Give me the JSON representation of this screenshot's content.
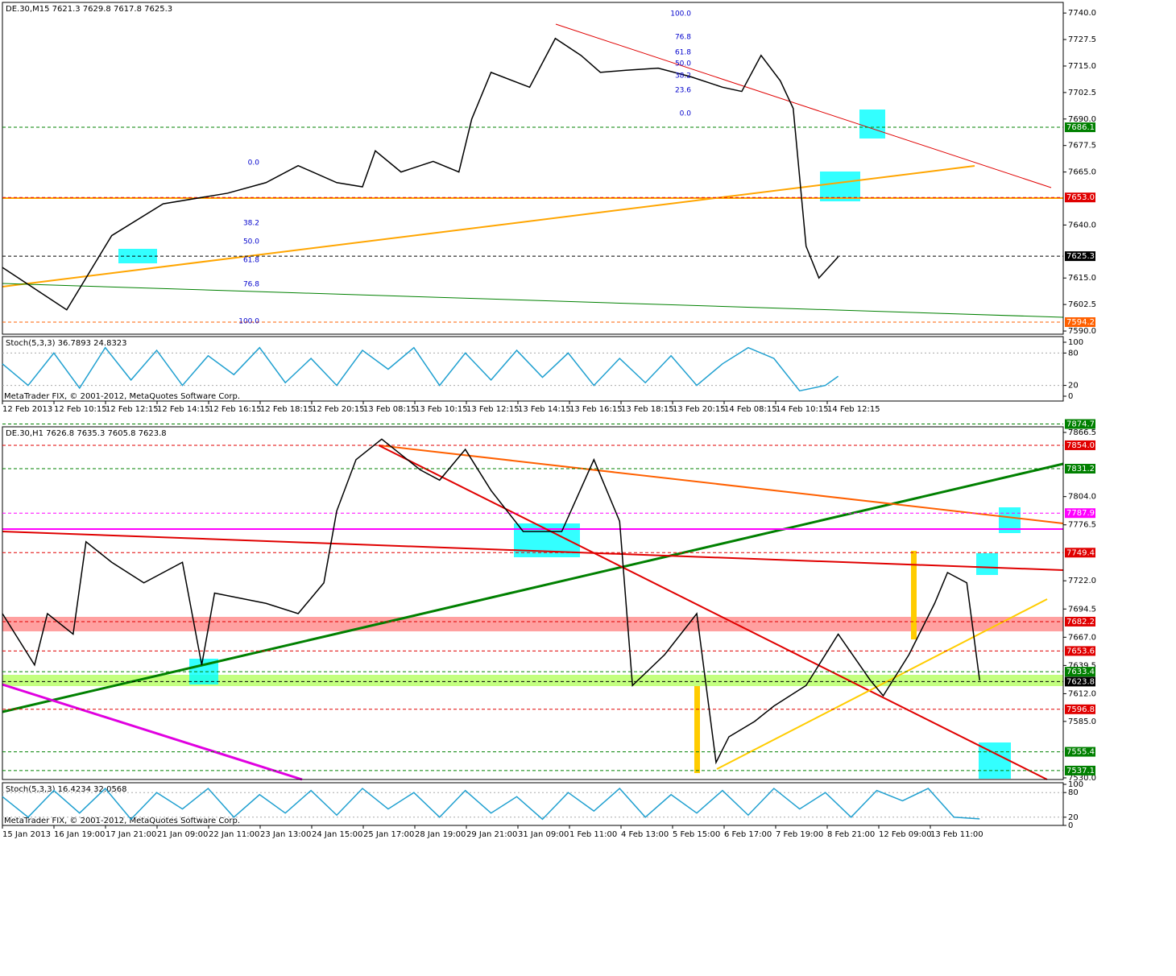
{
  "chart_data": [
    {
      "type": "line",
      "title": "DE.30,M15  7621.3 7629.8 7617.8 7625.3",
      "color": "#000000",
      "x": [
        0,
        10,
        17,
        25,
        35,
        41,
        46,
        52,
        56,
        58,
        62,
        67,
        71,
        73,
        76,
        82,
        86,
        90,
        93,
        97,
        102,
        107,
        112,
        115,
        118,
        121,
        123,
        125,
        127,
        130
      ],
      "values": [
        7620,
        7600,
        7635,
        7650,
        7655,
        7660,
        7668,
        7660,
        7658,
        7675,
        7665,
        7670,
        7665,
        7690,
        7712,
        7705,
        7728,
        7720,
        7712,
        7713,
        7714,
        7710,
        7705,
        7703,
        7720,
        7708,
        7695,
        7630,
        7615,
        7625
      ],
      "xlim": [
        0,
        165
      ],
      "ylim": [
        7588.5,
        7745
      ],
      "yticks": [
        {
          "value": 7740,
          "label": "7740.0"
        },
        {
          "value": 7727.5,
          "label": "7727.5"
        },
        {
          "value": 7715,
          "label": "7715.0"
        },
        {
          "value": 7702.5,
          "label": "7702.5"
        },
        {
          "value": 7690,
          "label": "7690.0"
        },
        {
          "value": 7677.5,
          "label": "7677.5"
        },
        {
          "value": 7665,
          "label": "7665.0"
        },
        {
          "value": 7640,
          "label": "7640.0"
        },
        {
          "value": 7615,
          "label": "7615.0"
        },
        {
          "value": 7602.5,
          "label": "7602.5"
        },
        {
          "value": 7590,
          "label": "7590.0"
        }
      ],
      "levels": [
        {
          "value": 7686.1,
          "color": "#008000"
        },
        {
          "value": 7653,
          "label": "7653.0",
          "color": "#e00000"
        },
        {
          "value": 7625.3,
          "color": "#000000"
        },
        {
          "value": 7594.2,
          "color": "#ff6000"
        }
      ],
      "time_labels": [
        "12 Feb 2013",
        "12 Feb 10:15",
        "12 Feb 12:15",
        "12 Feb 14:15",
        "12 Feb 16:15",
        "12 Feb 18:15",
        "12 Feb 20:15",
        "13 Feb 08:15",
        "13 Feb 10:15",
        "13 Feb 12:15",
        "13 Feb 14:15",
        "13 Feb 16:15",
        "13 Feb 18:15",
        "13 Feb 20:15",
        "14 Feb 08:15",
        "14 Feb 10:15",
        "14 Feb 12:15"
      ],
      "annotations": [
        "0.0",
        "38.2",
        "50.0",
        "61.8",
        "76.8",
        "100.0",
        "100.0",
        "76.8",
        "61.8",
        "50.0",
        "38.2",
        "23.6",
        "0.0"
      ]
    },
    {
      "type": "line",
      "title": "Stoch(5,3,3) 36.7893 24.8323",
      "copyright": "MetaTrader FIX, © 2001-2012, MetaQuotes Software Corp.",
      "color": "#20a0d0",
      "x": [
        0,
        4,
        8,
        12,
        16,
        20,
        24,
        28,
        32,
        36,
        40,
        44,
        48,
        52,
        56,
        60,
        64,
        68,
        72,
        76,
        80,
        84,
        88,
        92,
        96,
        100,
        104,
        108,
        112,
        116,
        120,
        124,
        128,
        130
      ],
      "values": [
        60,
        20,
        80,
        15,
        90,
        30,
        85,
        20,
        75,
        40,
        90,
        25,
        70,
        20,
        85,
        50,
        90,
        20,
        80,
        30,
        85,
        35,
        80,
        20,
        70,
        25,
        75,
        20,
        60,
        90,
        70,
        10,
        20,
        37
      ],
      "xlim": [
        0,
        165
      ],
      "ylim": [
        0,
        100
      ],
      "yticks": [
        0,
        20,
        80,
        100
      ]
    },
    {
      "type": "line",
      "title": "DE.30,H1  7626.8 7635.3 7605.8 7623.8",
      "color": "#000000",
      "x": [
        0,
        5,
        7,
        11,
        13,
        17,
        22,
        28,
        31,
        33,
        41,
        46,
        50,
        52,
        55,
        59,
        65,
        68,
        72,
        76,
        81,
        87,
        92,
        96,
        98,
        103,
        108,
        111,
        113,
        117,
        120,
        125,
        130,
        135,
        137,
        141,
        145,
        147,
        150,
        152
      ],
      "values": [
        7690,
        7640,
        7690,
        7670,
        7760,
        7740,
        7720,
        7740,
        7640,
        7710,
        7700,
        7690,
        7720,
        7790,
        7840,
        7860,
        7830,
        7820,
        7850,
        7810,
        7770,
        7770,
        7840,
        7780,
        7620,
        7650,
        7690,
        7545,
        7570,
        7585,
        7600,
        7620,
        7670,
        7625,
        7610,
        7650,
        7700,
        7730,
        7720,
        7625
      ],
      "xlim": [
        0,
        165
      ],
      "ylim": [
        7528.4,
        7872
      ],
      "yticks": [
        {
          "value": 7866.5,
          "label": "7866.5"
        },
        {
          "value": 7804,
          "label": "7804.0"
        },
        {
          "value": 7776.5,
          "label": "7776.5"
        },
        {
          "value": 7722,
          "label": "7722.0"
        },
        {
          "value": 7694.5,
          "label": "7694.5"
        },
        {
          "value": 7667,
          "label": "7667.0"
        },
        {
          "value": 7639.5,
          "label": "7639.5"
        },
        {
          "value": 7612,
          "label": "7612.0"
        },
        {
          "value": 7585,
          "label": "7585.0"
        },
        {
          "value": 7530,
          "label": "7530.0"
        }
      ],
      "levels": [
        {
          "value": 7874.7,
          "color": "#008000"
        },
        {
          "value": 7854,
          "label": "7854.0",
          "color": "#e00000"
        },
        {
          "value": 7831.2,
          "color": "#008000"
        },
        {
          "value": 7787.9,
          "color": "#ff00ff"
        },
        {
          "value": 7749.4,
          "color": "#e00000"
        },
        {
          "value": 7682.2,
          "color": "#e00000"
        },
        {
          "value": 7653.6,
          "color": "#e00000"
        },
        {
          "value": 7633.4,
          "color": "#008000"
        },
        {
          "value": 7623.8,
          "color": "#000000"
        },
        {
          "value": 7596.8,
          "color": "#e00000"
        },
        {
          "value": 7555.4,
          "color": "#008000"
        },
        {
          "value": 7537.1,
          "color": "#008000"
        }
      ],
      "time_labels": [
        "15 Jan 2013",
        "16 Jan 19:00",
        "17 Jan 21:00",
        "21 Jan 09:00",
        "22 Jan 11:00",
        "23 Jan 13:00",
        "24 Jan 15:00",
        "25 Jan 17:00",
        "28 Jan 19:00",
        "29 Jan 21:00",
        "31 Jan 09:00",
        "1 Feb 11:00",
        "4 Feb 13:00",
        "5 Feb 15:00",
        "6 Feb 17:00",
        "7 Feb 19:00",
        "8 Feb 21:00",
        "12 Feb 09:00",
        "13 Feb 11:00"
      ]
    },
    {
      "type": "line",
      "title": "Stoch(5,3,3) 16.4234 32.0568",
      "copyright": "MetaTrader FIX, © 2001-2012, MetaQuotes Software Corp.",
      "color": "#20a0d0",
      "x": [
        0,
        4,
        8,
        12,
        16,
        20,
        24,
        28,
        32,
        36,
        40,
        44,
        48,
        52,
        56,
        60,
        64,
        68,
        72,
        76,
        80,
        84,
        88,
        92,
        96,
        100,
        104,
        108,
        112,
        116,
        120,
        124,
        128,
        132,
        136,
        140,
        144,
        148,
        152
      ],
      "values": [
        70,
        20,
        85,
        30,
        90,
        15,
        80,
        40,
        90,
        20,
        75,
        30,
        85,
        25,
        90,
        40,
        80,
        20,
        85,
        30,
        70,
        15,
        80,
        35,
        90,
        20,
        75,
        30,
        85,
        25,
        90,
        40,
        80,
        20,
        85,
        60,
        90,
        20,
        16
      ],
      "xlim": [
        0,
        165
      ],
      "ylim": [
        0,
        100
      ],
      "yticks": [
        0,
        20,
        80,
        100
      ]
    }
  ]
}
